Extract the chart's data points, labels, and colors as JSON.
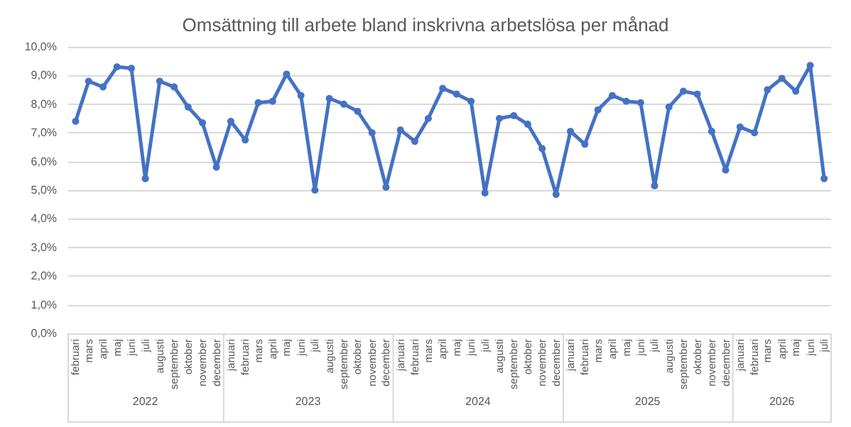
{
  "chart_data": {
    "type": "line",
    "title": "Omsättning till arbete bland inskrivna arbetslösa per månad",
    "x": [
      "2022-02",
      "2022-03",
      "2022-04",
      "2022-05",
      "2022-06",
      "2022-07",
      "2022-08",
      "2022-09",
      "2022-10",
      "2022-11",
      "2022-12",
      "2023-01",
      "2023-02",
      "2023-03",
      "2023-04",
      "2023-05",
      "2023-06",
      "2023-07",
      "2023-08",
      "2023-09",
      "2023-10",
      "2023-11",
      "2023-12",
      "2024-01",
      "2024-02",
      "2024-03",
      "2024-04",
      "2024-05",
      "2024-06",
      "2024-07",
      "2024-08",
      "2024-09",
      "2024-10",
      "2024-11",
      "2024-12",
      "2025-01",
      "2025-02",
      "2025-03",
      "2025-04",
      "2025-05",
      "2025-06",
      "2025-07",
      "2025-08",
      "2025-09",
      "2025-10",
      "2025-11",
      "2025-12",
      "2026-01",
      "2026-02",
      "2026-03",
      "2026-04",
      "2026-05",
      "2026-06",
      "2026-07"
    ],
    "series": [
      {
        "color": "#4472c4",
        "values": [
          7.4,
          8.8,
          8.6,
          9.3,
          9.25,
          5.4,
          8.8,
          8.6,
          7.9,
          7.35,
          5.8,
          7.4,
          6.75,
          8.05,
          8.1,
          9.05,
          8.3,
          5.0,
          8.2,
          8.0,
          7.75,
          7.0,
          5.1,
          7.1,
          6.7,
          7.5,
          8.55,
          8.35,
          8.1,
          4.9,
          7.5,
          7.6,
          7.3,
          6.45,
          4.85,
          7.05,
          6.6,
          7.8,
          8.3,
          8.1,
          8.05,
          5.15,
          7.9,
          8.45,
          8.35,
          7.05,
          5.7,
          7.2,
          7.0,
          8.5,
          8.9,
          8.45,
          9.35,
          5.4
        ]
      }
    ],
    "xlim": [
      "2022-01-16",
      "2026-07-16"
    ],
    "xticks": [
      {
        "value": "2022-02",
        "label": "februari"
      },
      {
        "value": "2022-03",
        "label": "mars"
      },
      {
        "value": "2022-04",
        "label": "april"
      },
      {
        "value": "2022-05",
        "label": "maj"
      },
      {
        "value": "2022-06",
        "label": "juni"
      },
      {
        "value": "2022-07",
        "label": "juli"
      },
      {
        "value": "2022-08",
        "label": "augusti"
      },
      {
        "value": "2022-09",
        "label": "september"
      },
      {
        "value": "2022-10",
        "label": "oktober"
      },
      {
        "value": "2022-11",
        "label": "november"
      },
      {
        "value": "2022-12",
        "label": "december"
      },
      {
        "value": "2023-01",
        "label": "januari"
      },
      {
        "value": "2023-02",
        "label": "februari"
      },
      {
        "value": "2023-03",
        "label": "mars"
      },
      {
        "value": "2023-04",
        "label": "april"
      },
      {
        "value": "2023-05",
        "label": "maj"
      },
      {
        "value": "2023-06",
        "label": "juni"
      },
      {
        "value": "2023-07",
        "label": "juli"
      },
      {
        "value": "2023-08",
        "label": "augusti"
      },
      {
        "value": "2023-09",
        "label": "september"
      },
      {
        "value": "2023-10",
        "label": "oktober"
      },
      {
        "value": "2023-11",
        "label": "november"
      },
      {
        "value": "2023-12",
        "label": "december"
      },
      {
        "value": "2024-01",
        "label": "januari"
      },
      {
        "value": "2024-02",
        "label": "februari"
      },
      {
        "value": "2024-03",
        "label": "mars"
      },
      {
        "value": "2024-04",
        "label": "april"
      },
      {
        "value": "2024-05",
        "label": "maj"
      },
      {
        "value": "2024-06",
        "label": "juni"
      },
      {
        "value": "2024-07",
        "label": "juli"
      },
      {
        "value": "2024-08",
        "label": "augusti"
      },
      {
        "value": "2024-09",
        "label": "september"
      },
      {
        "value": "2024-10",
        "label": "oktober"
      },
      {
        "value": "2024-11",
        "label": "november"
      },
      {
        "value": "2024-12",
        "label": "december"
      },
      {
        "value": "2025-01",
        "label": "januari"
      },
      {
        "value": "2025-02",
        "label": "februari"
      },
      {
        "value": "2025-03",
        "label": "mars"
      },
      {
        "value": "2025-04",
        "label": "april"
      },
      {
        "value": "2025-05",
        "label": "maj"
      },
      {
        "value": "2025-06",
        "label": "juni"
      },
      {
        "value": "2025-07",
        "label": "juli"
      },
      {
        "value": "2025-08",
        "label": "augusti"
      },
      {
        "value": "2025-09",
        "label": "september"
      },
      {
        "value": "2025-10",
        "label": "oktober"
      },
      {
        "value": "2025-11",
        "label": "november"
      },
      {
        "value": "2025-12",
        "label": "december"
      },
      {
        "value": "2026-01",
        "label": "januari"
      },
      {
        "value": "2026-02",
        "label": "februari"
      },
      {
        "value": "2026-03",
        "label": "mars"
      },
      {
        "value": "2026-04",
        "label": "april"
      },
      {
        "value": "2026-05",
        "label": "maj"
      },
      {
        "value": "2026-06",
        "label": "juni"
      },
      {
        "value": "2026-07",
        "label": "juli"
      }
    ],
    "x2lim": [
      "2022-01-16",
      "2026-07-16"
    ],
    "x2ticks": [
      {
        "value": "2022-07",
        "label": "2022"
      },
      {
        "value": "2023-06-16",
        "label": "2023"
      },
      {
        "value": "2024-06-16",
        "label": "2024"
      },
      {
        "value": "2025-06-16",
        "label": "2025"
      },
      {
        "value": "2026-04",
        "label": "2026"
      }
    ],
    "ylim": [
      0,
      10
    ],
    "yticks": [
      {
        "value": 0,
        "label": "0,0%"
      },
      {
        "value": 1,
        "label": "1,0%"
      },
      {
        "value": 2,
        "label": "2,0%"
      },
      {
        "value": 3,
        "label": "3,0%"
      },
      {
        "value": 4,
        "label": "4,0%"
      },
      {
        "value": 5,
        "label": "5,0%"
      },
      {
        "value": 6,
        "label": "6,0%"
      },
      {
        "value": 7,
        "label": "7,0%"
      },
      {
        "value": 8,
        "label": "8,0%"
      },
      {
        "value": 9,
        "label": "9,0%"
      },
      {
        "value": 10,
        "label": "10,0%"
      }
    ],
    "grid": "y",
    "marker": "circle",
    "line_style": "solid"
  }
}
